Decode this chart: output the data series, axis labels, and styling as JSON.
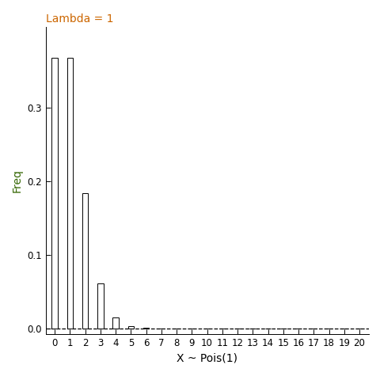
{
  "lambda": 1,
  "x_values": [
    0,
    1,
    2,
    3,
    4,
    5,
    6,
    7,
    8,
    9,
    10,
    11,
    12,
    13,
    14,
    15,
    16,
    17,
    18,
    19,
    20
  ],
  "pmf_values": [
    0.36787944117144233,
    0.36787944117144233,
    0.18393972058572117,
    0.06131324019524039,
    0.015328310048810098,
    0.003065662009762019,
    0.0005109436682936699,
    7.299195261338141e-05,
    9.123994076672677e-06,
    1.013777119630297e-06,
    1.013777119630297e-07,
    9.216155633002698e-09,
    7.680129694168914e-10,
    5.907792072437627e-11,
    4.219851480312592e-12,
    2.8132343202083945e-13,
    1.7582714501302466e-14,
    1.0342773236060274e-15,
    5.745985131144597e-17,
    3.0242027006024194e-18,
    1.5121013503012098e-19
  ],
  "title": "Lambda = 1",
  "title_color": "#cc6600",
  "xlabel": "X ~ Pois(1)",
  "xlabel_color": "#000000",
  "ylabel": "Freq",
  "ylabel_color": "#336600",
  "bar_color": "white",
  "bar_edgecolor": "black",
  "background_color": "white",
  "dashed_line_color": "black",
  "xlim": [
    -0.6,
    20.6
  ],
  "ylim": [
    -0.008,
    0.41
  ],
  "yticks": [
    0.0,
    0.1,
    0.2,
    0.3
  ],
  "xtick_labels": [
    "0",
    "1",
    "2",
    "3",
    "4",
    "5",
    "6",
    "7",
    "8",
    "9",
    "10",
    "11",
    "12",
    "13",
    "14",
    "15",
    "16",
    "17",
    "18",
    "19",
    "20"
  ],
  "title_fontsize": 10,
  "axis_label_fontsize": 10,
  "tick_fontsize": 8.5,
  "bar_width": 0.4
}
